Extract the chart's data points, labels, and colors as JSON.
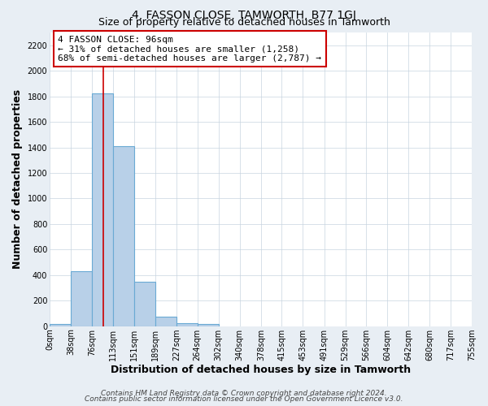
{
  "title": "4, FASSON CLOSE, TAMWORTH, B77 1GJ",
  "subtitle": "Size of property relative to detached houses in Tamworth",
  "xlabel": "Distribution of detached houses by size in Tamworth",
  "ylabel": "Number of detached properties",
  "property_size": 96,
  "bar_edges": [
    0,
    38,
    76,
    113,
    151,
    189,
    227,
    264,
    302,
    340,
    378,
    415,
    453,
    491,
    529,
    566,
    604,
    642,
    680,
    717,
    755
  ],
  "bar_heights": [
    20,
    430,
    1820,
    1410,
    350,
    75,
    25,
    20,
    0,
    0,
    0,
    0,
    0,
    0,
    0,
    0,
    0,
    0,
    0,
    0
  ],
  "bar_color": "#b8d0e8",
  "bar_edge_color": "#6aaad4",
  "red_line_x": 96,
  "annotation_line1": "4 FASSON CLOSE: 96sqm",
  "annotation_line2": "← 31% of detached houses are smaller (1,258)",
  "annotation_line3": "68% of semi-detached houses are larger (2,787) →",
  "annotation_box_color": "#ffffff",
  "annotation_box_edge": "#cc0000",
  "ylim": [
    0,
    2300
  ],
  "yticks": [
    0,
    200,
    400,
    600,
    800,
    1000,
    1200,
    1400,
    1600,
    1800,
    2000,
    2200
  ],
  "xtick_labels": [
    "0sqm",
    "38sqm",
    "76sqm",
    "113sqm",
    "151sqm",
    "189sqm",
    "227sqm",
    "264sqm",
    "302sqm",
    "340sqm",
    "378sqm",
    "415sqm",
    "453sqm",
    "491sqm",
    "529sqm",
    "566sqm",
    "604sqm",
    "642sqm",
    "680sqm",
    "717sqm",
    "755sqm"
  ],
  "footer_line1": "Contains HM Land Registry data © Crown copyright and database right 2024.",
  "footer_line2": "Contains public sector information licensed under the Open Government Licence v3.0.",
  "fig_background_color": "#e8eef4",
  "plot_background_color": "#ffffff",
  "grid_color": "#c8d4e0",
  "title_fontsize": 10,
  "subtitle_fontsize": 9,
  "annotation_fontsize": 8,
  "axis_label_fontsize": 9,
  "tick_fontsize": 7,
  "footer_fontsize": 6.5
}
